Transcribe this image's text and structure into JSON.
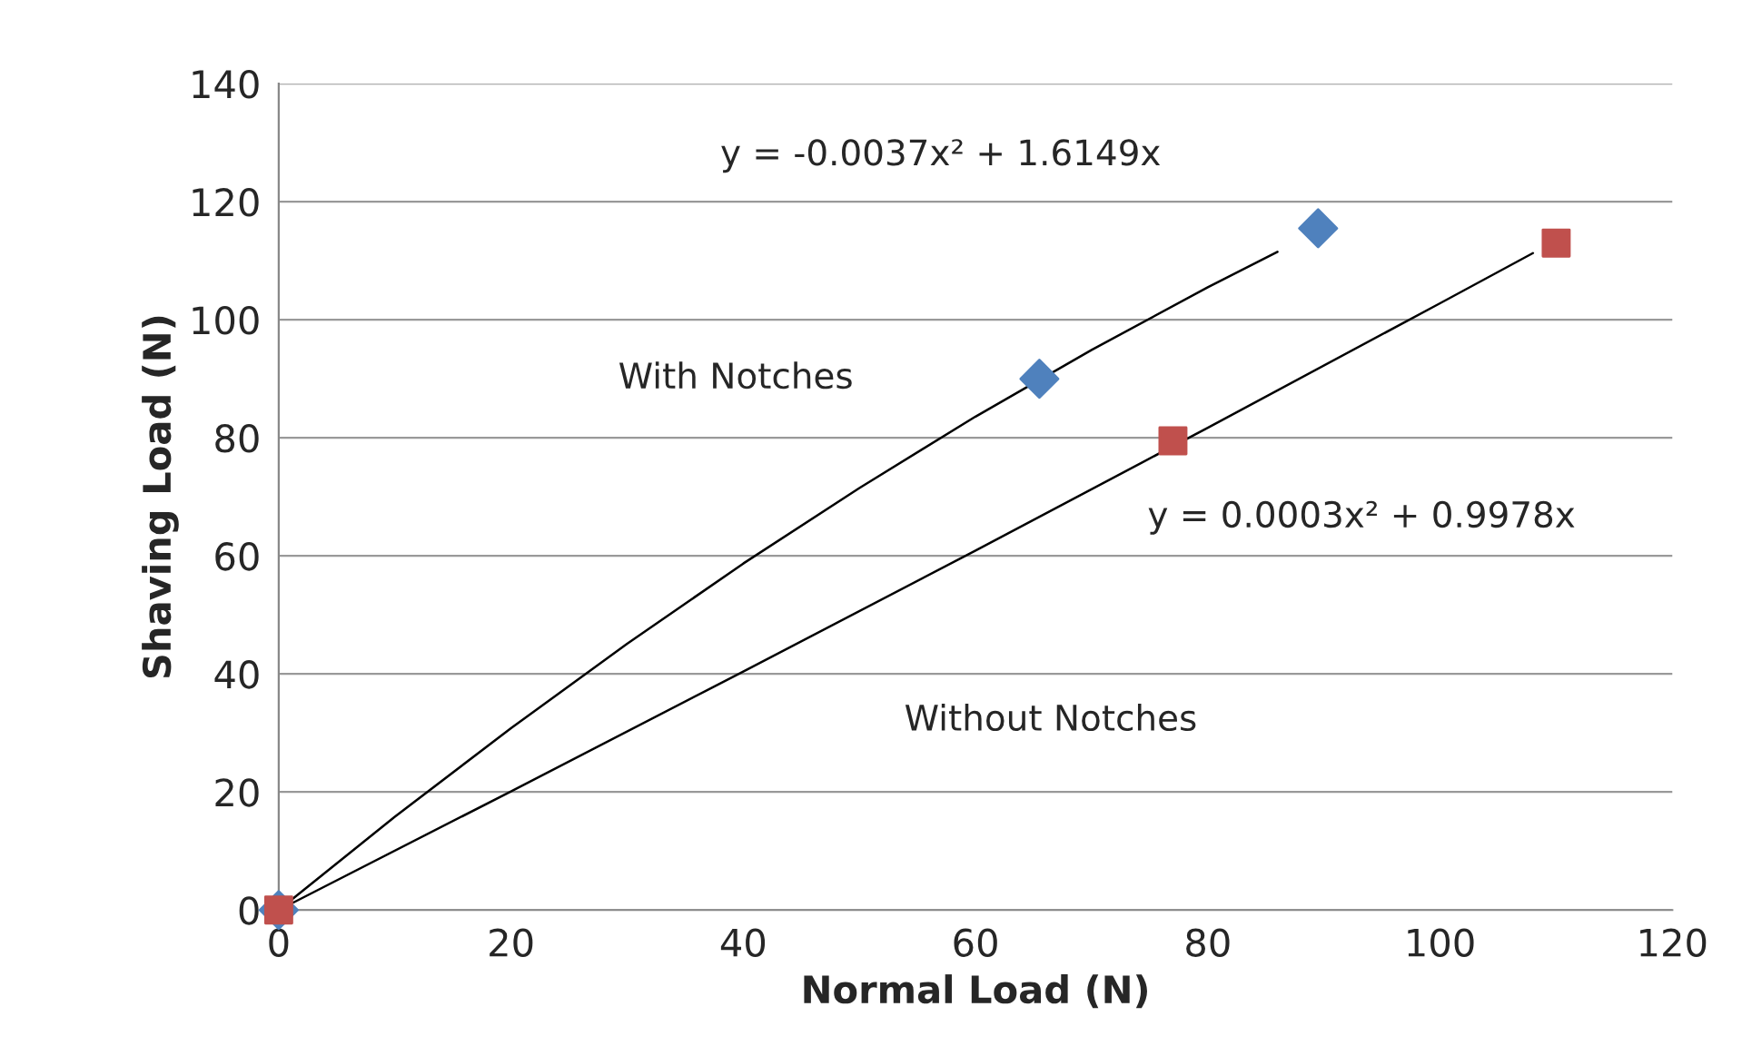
{
  "chart_data": {
    "type": "scatter",
    "xlabel": "Normal Load (N)",
    "ylabel": "Shaving Load (N)",
    "xlim": [
      0,
      120
    ],
    "xticks": [
      0,
      20,
      40,
      60,
      80,
      100,
      120
    ],
    "ylim": [
      0,
      140
    ],
    "yticks": [
      0,
      20,
      40,
      60,
      80,
      100,
      120,
      140
    ],
    "grid": "y",
    "series": [
      {
        "type": "line",
        "color": "#000000",
        "x": [
          0,
          10,
          20,
          30,
          40,
          50,
          60,
          70,
          80,
          86
        ],
        "values": [
          0,
          15.8,
          30.8,
          45.1,
          58.7,
          71.5,
          83.6,
          94.9,
          105.5,
          111.5
        ],
        "marker": "none"
      },
      {
        "type": "line",
        "color": "#000000",
        "x": [
          0,
          20,
          40,
          60,
          80,
          100,
          108
        ],
        "values": [
          0,
          20.1,
          40.4,
          60.9,
          81.7,
          102.8,
          111.3
        ],
        "marker": "none"
      },
      {
        "color": "#4f81bd",
        "x": [
          0,
          65.5,
          89.5
        ],
        "values": [
          0,
          90,
          115.5
        ],
        "marker": "diamond"
      },
      {
        "color": "#c0504d",
        "x": [
          0,
          77,
          110
        ],
        "values": [
          0,
          79.5,
          113
        ],
        "marker": "square"
      }
    ],
    "annotations": [
      "y = -0.0037x² + 1.6149x",
      "With Notches",
      "y = 0.0003x² + 0.9978x",
      "Without Notches"
    ]
  }
}
